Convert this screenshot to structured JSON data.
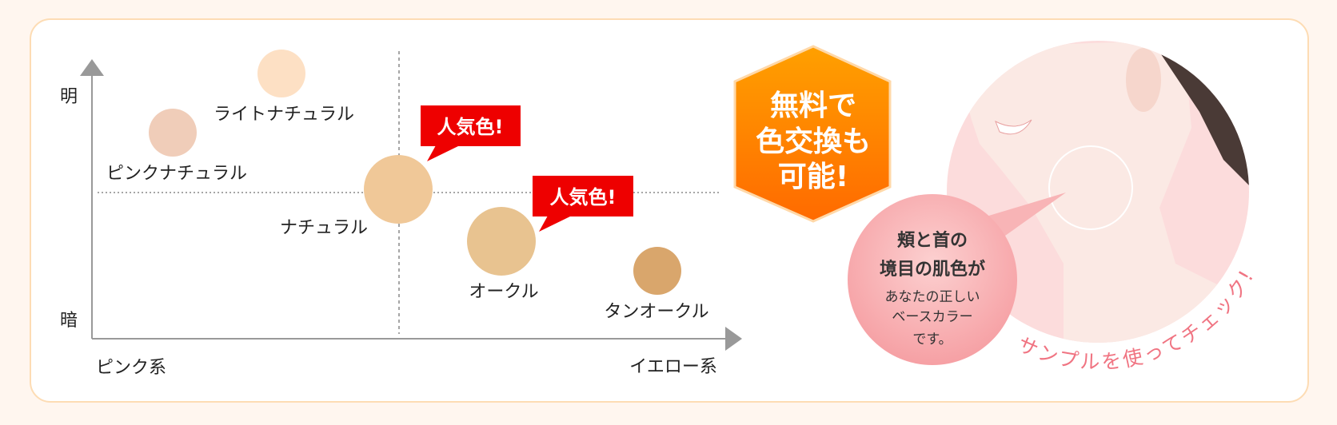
{
  "chart": {
    "y_axis": {
      "top_label": "明",
      "bottom_label": "暗"
    },
    "x_axis": {
      "left_label": "ピンク系",
      "right_label": "イエロー系"
    },
    "shades": [
      {
        "name": "ライトナチュラル",
        "color": "#fde0c4"
      },
      {
        "name": "ピンクナチュラル",
        "color": "#f0cdb9"
      },
      {
        "name": "ナチュラル",
        "color": "#f0c898"
      },
      {
        "name": "オークル",
        "color": "#e8c390"
      },
      {
        "name": "タンオークル",
        "color": "#d9a66c"
      }
    ],
    "popular_badge": "人気色!",
    "badge_color": "#ee0000"
  },
  "hexagon": {
    "lines": [
      "無料で",
      "色交換も",
      "可能!"
    ],
    "color": "#ff7a00"
  },
  "bubble": {
    "lines": [
      "頬と首の",
      "境目の肌色が",
      "あなたの正しい",
      "ベースカラー",
      "です。"
    ]
  },
  "curved_caption": "サンプルを使ってチェック!"
}
